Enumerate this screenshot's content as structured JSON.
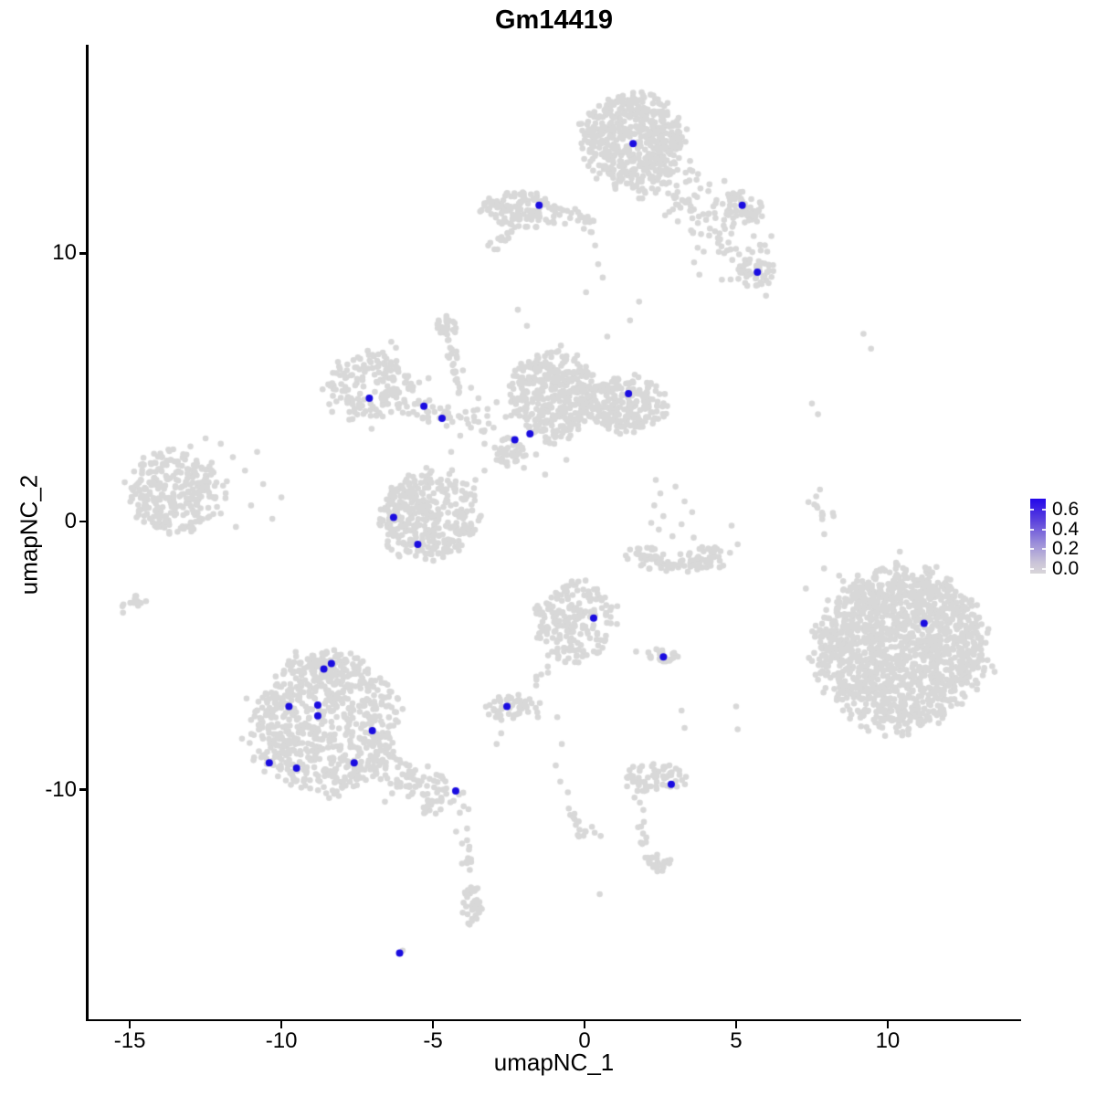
{
  "title": "Gm14419",
  "axes": {
    "x": {
      "label": "umapNC_1",
      "ticks": [
        -15,
        -10,
        -5,
        0,
        5,
        10
      ],
      "tick_labels": [
        "-15",
        "-10",
        "-5",
        "0",
        "5",
        "10"
      ]
    },
    "y": {
      "label": "umapNC_2",
      "ticks": [
        10,
        0,
        -10
      ],
      "tick_labels": [
        "10",
        "0",
        "-10"
      ]
    }
  },
  "legend": {
    "tick_values": [
      0.6,
      0.4,
      0.2,
      0.0
    ],
    "tick_labels": [
      "0.6",
      "0.4",
      "0.2",
      "0.0"
    ],
    "bar_value_range": [
      -0.046,
      0.71
    ],
    "color_low": "#d9d6d9",
    "color_high": "#2408ea"
  },
  "colors": {
    "background": "#ffffff",
    "axis": "#000000",
    "point_gray": "#d8d8d8",
    "point_blue": "#1a0ce0"
  },
  "chart_data": {
    "type": "scatter",
    "title": "Gm14419",
    "xlabel": "umapNC_1",
    "ylabel": "umapNC_2",
    "xlim": [
      -16.42,
      14.4
    ],
    "ylim": [
      -18.6,
      17.75
    ],
    "grid": false,
    "legend_position": "right",
    "expression_scale": {
      "min": 0.0,
      "max": 0.6
    },
    "highlighted_points": [
      [
        1.6,
        14.1
      ],
      [
        -1.5,
        11.8
      ],
      [
        5.2,
        11.8
      ],
      [
        5.7,
        9.3
      ],
      [
        -7.1,
        4.6
      ],
      [
        -5.3,
        4.3
      ],
      [
        -4.7,
        3.85
      ],
      [
        -2.3,
        3.05
      ],
      [
        -1.8,
        3.27
      ],
      [
        1.45,
        4.77
      ],
      [
        -6.3,
        0.15
      ],
      [
        -5.5,
        -0.85
      ],
      [
        0.3,
        -3.6
      ],
      [
        2.6,
        -5.05
      ],
      [
        11.2,
        -3.8
      ],
      [
        -8.35,
        -5.3
      ],
      [
        -8.6,
        -5.5
      ],
      [
        -9.75,
        -6.9
      ],
      [
        -8.8,
        -6.85
      ],
      [
        -8.8,
        -7.25
      ],
      [
        -7.0,
        -7.8
      ],
      [
        -10.4,
        -9.0
      ],
      [
        -9.5,
        -9.2
      ],
      [
        -7.6,
        -9.0
      ],
      [
        -4.25,
        -10.05
      ],
      [
        -2.56,
        -6.9
      ],
      [
        2.86,
        -9.8
      ],
      [
        -6.1,
        -16.1
      ]
    ],
    "background_clusters": [
      {
        "type": "disk",
        "cx": 1.6,
        "cy": 14.2,
        "rx": 1.65,
        "ry": 1.75,
        "n": 500
      },
      {
        "type": "band",
        "x1": 2.1,
        "y1": 13.3,
        "x2": 5.4,
        "y2": 9.7,
        "w": 0.55,
        "n": 130
      },
      {
        "type": "disk",
        "cx": 5.25,
        "cy": 11.75,
        "rx": 0.75,
        "ry": 0.62,
        "n": 60
      },
      {
        "type": "disk",
        "cx": 5.65,
        "cy": 9.25,
        "rx": 0.6,
        "ry": 0.5,
        "n": 50
      },
      {
        "type": "disk",
        "cx": -2.1,
        "cy": 11.65,
        "rx": 1.35,
        "ry": 0.72,
        "n": 120
      },
      {
        "type": "band",
        "x1": -0.85,
        "y1": 11.5,
        "x2": 0.35,
        "y2": 11.1,
        "w": 0.2,
        "n": 22
      },
      {
        "type": "scatter",
        "pts": [
          [
            0.2,
            10.8
          ],
          [
            0.35,
            10.3
          ],
          [
            0.45,
            9.6
          ],
          [
            0.6,
            9.1
          ],
          [
            0.05,
            8.55
          ],
          [
            1.8,
            8.2
          ],
          [
            1.5,
            7.5
          ],
          [
            0.75,
            6.9
          ],
          [
            -2.2,
            7.9
          ],
          [
            -1.9,
            7.3
          ]
        ]
      },
      {
        "type": "band",
        "x1": -3.1,
        "y1": 10.3,
        "x2": -2.5,
        "y2": 10.75,
        "w": 0.13,
        "n": 15
      },
      {
        "type": "ring",
        "cx": -7.05,
        "cy": 5.05,
        "r": 1.0,
        "jitter": 0.34,
        "n": 170
      },
      {
        "type": "band",
        "x1": -6.1,
        "y1": 4.35,
        "x2": -3.35,
        "y2": 3.7,
        "w": 0.22,
        "n": 50
      },
      {
        "type": "band",
        "x1": -4.1,
        "y1": 4.95,
        "x2": -4.5,
        "y2": 6.5,
        "w": 0.16,
        "n": 22
      },
      {
        "type": "disk",
        "cx": -4.55,
        "cy": 7.2,
        "rx": 0.34,
        "ry": 0.5,
        "n": 30
      },
      {
        "type": "disk",
        "cx": -1.05,
        "cy": 4.7,
        "rx": 1.35,
        "ry": 1.6,
        "n": 380
      },
      {
        "type": "disk",
        "cx": 1.35,
        "cy": 4.35,
        "rx": 1.3,
        "ry": 1.05,
        "n": 240
      },
      {
        "type": "disk",
        "cx": -2.45,
        "cy": 2.6,
        "rx": 0.5,
        "ry": 0.5,
        "n": 45
      },
      {
        "type": "scatter",
        "pts": [
          [
            -3.5,
            4.6
          ],
          [
            -3.2,
            4.2
          ],
          [
            -2.9,
            4.45
          ],
          [
            -2.6,
            3.9
          ],
          [
            -3.0,
            3.5
          ],
          [
            -2.2,
            4.1
          ],
          [
            -1.9,
            3.8
          ],
          [
            -3.3,
            2.9
          ],
          [
            -2.9,
            2.3
          ],
          [
            -3.3,
            1.9
          ],
          [
            -3.6,
            1.55
          ],
          [
            -2.0,
            2.0
          ],
          [
            -1.6,
            2.5
          ],
          [
            -1.3,
            1.75
          ],
          [
            -4.1,
            3.2
          ],
          [
            -4.4,
            2.6
          ],
          [
            -1.0,
            2.9
          ],
          [
            -0.6,
            2.3
          ]
        ]
      },
      {
        "type": "disk",
        "cx": -5.15,
        "cy": 0.2,
        "rx": 1.65,
        "ry": 1.6,
        "n": 360
      },
      {
        "type": "arc",
        "cx": 3.2,
        "cy": -0.9,
        "r": 1.35,
        "a1": 185,
        "a2": 355,
        "jitter": 0.28,
        "n": 100
      },
      {
        "type": "scatter",
        "pts": [
          [
            2.35,
            1.55
          ],
          [
            2.5,
            1.05
          ],
          [
            2.3,
            0.6
          ],
          [
            2.6,
            0.2
          ],
          [
            2.45,
            -0.3
          ],
          [
            3.0,
            1.3
          ],
          [
            3.3,
            0.75
          ],
          [
            3.55,
            0.35
          ],
          [
            3.2,
            -0.1
          ],
          [
            2.9,
            -0.55
          ],
          [
            3.6,
            -0.6
          ],
          [
            2.2,
            -0.05
          ],
          [
            4.85,
            -0.15
          ],
          [
            5.05,
            -0.85
          ]
        ]
      },
      {
        "type": "band",
        "x1": 7.6,
        "y1": 1.0,
        "x2": 8.2,
        "y2": -0.6,
        "w": 0.16,
        "n": 13
      },
      {
        "type": "scatter",
        "pts": [
          [
            7.5,
            4.4
          ],
          [
            7.7,
            4.0
          ],
          [
            9.2,
            7.0
          ],
          [
            9.45,
            6.45
          ]
        ]
      },
      {
        "type": "disk",
        "cx": -13.55,
        "cy": 1.1,
        "rx": 1.5,
        "ry": 1.5,
        "n": 280
      },
      {
        "type": "scatter",
        "pts": [
          [
            -12.0,
            2.9
          ],
          [
            -11.6,
            2.4
          ],
          [
            -11.2,
            1.9
          ],
          [
            -11.8,
            1.5
          ],
          [
            -12.3,
            2.2
          ],
          [
            -10.8,
            2.6
          ],
          [
            -10.6,
            1.4
          ],
          [
            -11.0,
            0.6
          ],
          [
            -11.5,
            -0.2
          ],
          [
            -12.0,
            0.3
          ],
          [
            -10.3,
            0.1
          ],
          [
            -12.5,
            3.1
          ],
          [
            -13.0,
            2.8
          ],
          [
            -10.0,
            0.9
          ]
        ]
      },
      {
        "type": "band",
        "x1": -15.35,
        "y1": -3.35,
        "x2": -14.65,
        "y2": -2.85,
        "w": 0.12,
        "n": 13
      },
      {
        "type": "disk",
        "cx": 10.4,
        "cy": -4.7,
        "rx": 2.75,
        "ry": 2.95,
        "n": 1500
      },
      {
        "type": "scatter",
        "pts": [
          [
            7.9,
            -1.75
          ],
          [
            7.6,
            -4.3
          ],
          [
            7.8,
            -4.7
          ],
          [
            7.5,
            -5.2
          ],
          [
            7.7,
            -5.9
          ],
          [
            7.3,
            -2.5
          ]
        ]
      },
      {
        "type": "disk",
        "cx": -8.55,
        "cy": -7.6,
        "rx": 2.4,
        "ry": 2.6,
        "n": 700
      },
      {
        "type": "disk",
        "cx": -8.3,
        "cy": -5.35,
        "rx": 0.9,
        "ry": 0.6,
        "n": 60
      },
      {
        "type": "band",
        "x1": -6.4,
        "y1": -9.3,
        "x2": -4.3,
        "y2": -10.6,
        "w": 0.4,
        "n": 90
      },
      {
        "type": "band",
        "x1": -4.05,
        "y1": -11.3,
        "x2": -3.75,
        "y2": -13.1,
        "w": 0.12,
        "n": 12
      },
      {
        "type": "disk",
        "cx": -3.7,
        "cy": -14.3,
        "rx": 0.35,
        "ry": 0.8,
        "n": 35
      },
      {
        "type": "scatter",
        "pts": [
          [
            -11.15,
            -6.6
          ],
          [
            -11.0,
            -7.4
          ],
          [
            -11.3,
            -8.1
          ],
          [
            -10.9,
            -8.8
          ]
        ]
      },
      {
        "type": "disk",
        "cx": -0.35,
        "cy": -3.75,
        "rx": 1.25,
        "ry": 1.5,
        "n": 200
      },
      {
        "type": "band",
        "x1": -1.3,
        "y1": -5.35,
        "x2": -1.75,
        "y2": -7.3,
        "w": 0.15,
        "n": 13
      },
      {
        "type": "disk",
        "cx": 2.62,
        "cy": -5.0,
        "rx": 0.55,
        "ry": 0.28,
        "n": 26
      },
      {
        "type": "disk",
        "cx": -2.5,
        "cy": -6.95,
        "rx": 0.7,
        "ry": 0.55,
        "n": 48
      },
      {
        "type": "scatter",
        "pts": [
          [
            1.7,
            -4.85
          ],
          [
            -2.75,
            -7.9
          ],
          [
            -2.9,
            -8.3
          ],
          [
            -0.9,
            -7.3
          ],
          [
            -0.75,
            -8.3
          ],
          [
            -0.95,
            -9.1
          ],
          [
            -0.8,
            -9.7
          ],
          [
            -0.55,
            -10.1
          ],
          [
            0.5,
            -13.9
          ],
          [
            3.2,
            -7.05
          ],
          [
            3.3,
            -7.7
          ],
          [
            5.0,
            -6.9
          ],
          [
            5.05,
            -7.75
          ],
          [
            -6.0,
            -16.0
          ]
        ]
      },
      {
        "type": "disk",
        "cx": 2.3,
        "cy": -9.6,
        "rx": 0.95,
        "ry": 0.6,
        "n": 62
      },
      {
        "type": "band",
        "x1": 1.75,
        "y1": -10.3,
        "x2": 1.95,
        "y2": -12.2,
        "w": 0.14,
        "n": 11
      },
      {
        "type": "disk",
        "cx": 2.4,
        "cy": -12.75,
        "rx": 0.45,
        "ry": 0.4,
        "n": 24
      },
      {
        "type": "band",
        "x1": -0.55,
        "y1": -10.6,
        "x2": 0.1,
        "y2": -12.0,
        "w": 0.2,
        "n": 16
      }
    ]
  }
}
